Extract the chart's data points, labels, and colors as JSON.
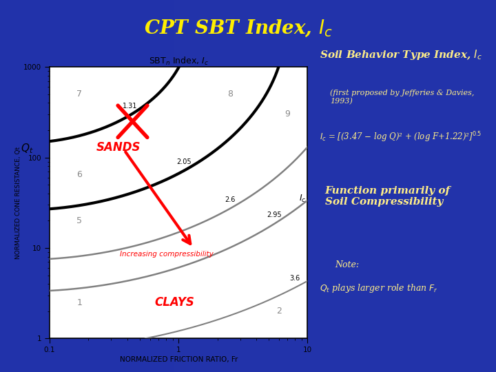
{
  "title": "CPT SBT Index, $I_c$",
  "title_color": "#FFEE00",
  "background_color": "#2233AA",
  "chart_title": "SBT$_n$ Index, $I_c$",
  "xlabel": "NORMALIZED FRICTION RATIO, Fr",
  "ylabel": "NORMALIZED CONE RESISTANCE, Qt",
  "right_title": "Soil Behavior Type Index, $I_c$",
  "right_subtitle": "(first proposed by Jefferies & Davies,\n1993)",
  "right_formula": "$I_c$ = [(3.47 − log Q)² + (log F+1.22)²]$^{0.5}$",
  "right_func": "Function primarily of\nSoil Compressibility",
  "right_note": "Note:\n$Q_t$ plays larger role than $F_r$",
  "Ic_values": [
    1.31,
    2.05,
    2.6,
    2.95,
    3.6
  ],
  "sands_label": "SANDS",
  "clays_label": "CLAYS",
  "arrow_label": "Increasing compressibility",
  "Ic_label": "$I_c$"
}
